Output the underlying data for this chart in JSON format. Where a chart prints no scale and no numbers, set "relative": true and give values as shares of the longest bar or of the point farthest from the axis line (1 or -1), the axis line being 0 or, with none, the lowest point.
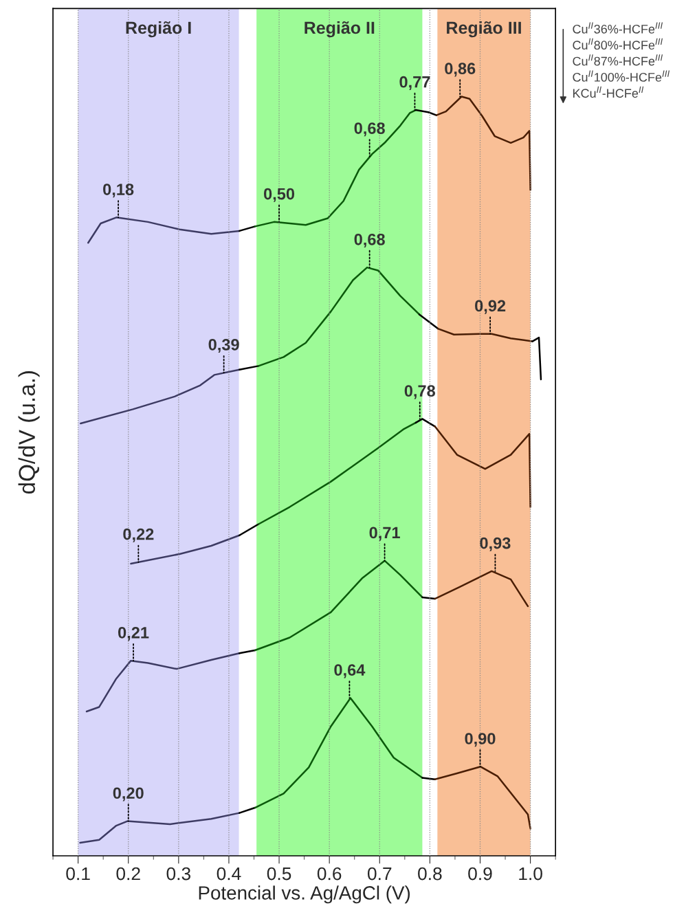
{
  "chart_data": {
    "type": "line",
    "relative": true,
    "xlabel": "Potencial vs. Ag/AgCl (V)",
    "ylabel": "dQ/dV (u.a.)",
    "xlim": [
      0.05,
      1.05
    ],
    "xticks": [
      0.1,
      0.2,
      0.3,
      0.4,
      0.5,
      0.6,
      0.7,
      0.8,
      0.9,
      {
        "value": 1.0,
        "label": "1.0"
      }
    ],
    "grid": "x",
    "line_style": "solid",
    "marker": "none",
    "bands": [
      {
        "axis": "x",
        "from": 0.1,
        "to": 0.42,
        "label": "Região I",
        "color": "#d8d6fa"
      },
      {
        "axis": "x",
        "from": 0.455,
        "to": 0.785,
        "label": "Região II",
        "color": "#9dfb97"
      },
      {
        "axis": "x",
        "from": 0.815,
        "to": 1.0,
        "label": "Região III",
        "color": "#f9bf96"
      }
    ],
    "series": [
      {
        "color": "#3d3b63",
        "x": [
          0.12,
          0.145,
          0.176,
          0.239,
          0.302,
          0.365,
          0.421
        ],
        "values": [
          0.804,
          0.83,
          0.838,
          0.832,
          0.822,
          0.816,
          0.82
        ]
      },
      {
        "color": "#000000",
        "x": [
          0.421,
          0.452
        ],
        "values": [
          0.82,
          0.826
        ]
      },
      {
        "color": "#0b5a0b",
        "x": [
          0.452,
          0.49,
          0.553,
          0.597,
          0.628,
          0.659,
          0.685,
          0.71,
          0.741,
          0.76,
          0.772
        ],
        "values": [
          0.826,
          0.832,
          0.828,
          0.837,
          0.86,
          0.902,
          0.923,
          0.938,
          0.961,
          0.978,
          0.982
        ]
      },
      {
        "color": "#000000",
        "x": [
          0.772,
          0.797,
          0.813
        ],
        "values": [
          0.982,
          0.979,
          0.975
        ]
      },
      {
        "color": "#4a1e05",
        "x": [
          0.813,
          0.832,
          0.863,
          0.879,
          0.904,
          0.929,
          0.961,
          0.986,
          0.998,
          1.0
        ],
        "values": [
          0.975,
          0.98,
          1.0,
          0.997,
          0.974,
          0.947,
          0.938,
          0.945,
          0.954,
          0.875
        ]
      },
      {
        "color": "#3d3b63",
        "x": [
          0.105,
          0.209,
          0.292,
          0.343,
          0.371,
          0.421
        ],
        "values": [
          0.562,
          0.581,
          0.598,
          0.613,
          0.627,
          0.634
        ]
      },
      {
        "color": "#000000",
        "x": [
          0.421,
          0.459
        ],
        "values": [
          0.634,
          0.639
        ]
      },
      {
        "color": "#0b5a0b",
        "x": [
          0.459,
          0.509,
          0.553,
          0.603,
          0.647,
          0.675,
          0.697,
          0.741,
          0.779
        ],
        "values": [
          0.639,
          0.651,
          0.67,
          0.712,
          0.754,
          0.771,
          0.767,
          0.733,
          0.708
        ]
      },
      {
        "color": "#000000",
        "x": [
          0.779,
          0.816
        ],
        "values": [
          0.708,
          0.689
        ]
      },
      {
        "color": "#4a1e05",
        "x": [
          0.816,
          0.848,
          0.898,
          0.923,
          0.961,
          1.004
        ],
        "values": [
          0.689,
          0.681,
          0.682,
          0.682,
          0.676,
          0.672
        ]
      },
      {
        "color": "#000000",
        "x": [
          1.004,
          1.017,
          1.021
        ],
        "values": [
          0.672,
          0.677,
          0.621
        ]
      },
      {
        "color": "#3d3b63",
        "x": [
          0.205,
          0.302,
          0.365,
          0.421
        ],
        "values": [
          0.374,
          0.387,
          0.398,
          0.412
        ]
      },
      {
        "color": "#000000",
        "x": [
          0.421,
          0.459
        ],
        "values": [
          0.412,
          0.427
        ]
      },
      {
        "color": "#0b5a0b",
        "x": [
          0.459,
          0.521,
          0.603,
          0.697,
          0.747,
          0.772
        ],
        "values": [
          0.427,
          0.45,
          0.484,
          0.529,
          0.554,
          0.563
        ]
      },
      {
        "color": "#000000",
        "x": [
          0.772,
          0.785,
          0.81
        ],
        "values": [
          0.563,
          0.568,
          0.558
        ]
      },
      {
        "color": "#4a1e05",
        "x": [
          0.81,
          0.854,
          0.91,
          0.961,
          0.998,
          1.0
        ],
        "values": [
          0.558,
          0.52,
          0.501,
          0.52,
          0.548,
          0.45
        ]
      },
      {
        "color": "#3d3b63",
        "x": [
          0.117,
          0.142,
          0.176,
          0.205,
          0.239,
          0.296,
          0.365,
          0.421
        ],
        "values": [
          0.176,
          0.182,
          0.22,
          0.244,
          0.241,
          0.233,
          0.245,
          0.254
        ]
      },
      {
        "color": "#000000",
        "x": [
          0.421,
          0.452
        ],
        "values": [
          0.254,
          0.258
        ]
      },
      {
        "color": "#0b5a0b",
        "x": [
          0.452,
          0.521,
          0.603,
          0.666,
          0.71,
          0.741,
          0.785
        ],
        "values": [
          0.258,
          0.275,
          0.309,
          0.355,
          0.378,
          0.359,
          0.329
        ]
      },
      {
        "color": "#000000",
        "x": [
          0.785,
          0.81
        ],
        "values": [
          0.329,
          0.327
        ]
      },
      {
        "color": "#4a1e05",
        "x": [
          0.81,
          0.86,
          0.923,
          0.961,
          0.995
        ],
        "values": [
          0.327,
          0.343,
          0.364,
          0.353,
          0.317
        ]
      },
      {
        "color": "#3d3b63",
        "x": [
          0.104,
          0.142,
          0.176,
          0.198,
          0.283,
          0.365,
          0.421
        ],
        "values": [
          0.0,
          0.004,
          0.023,
          0.029,
          0.025,
          0.032,
          0.04
        ]
      },
      {
        "color": "#000000",
        "x": [
          0.421,
          0.452
        ],
        "values": [
          0.04,
          0.047
        ]
      },
      {
        "color": "#0b5a0b",
        "x": [
          0.452,
          0.509,
          0.559,
          0.603,
          0.642,
          0.685,
          0.728,
          0.785
        ],
        "values": [
          0.047,
          0.066,
          0.101,
          0.156,
          0.194,
          0.156,
          0.114,
          0.087
        ]
      },
      {
        "color": "#000000",
        "x": [
          0.785,
          0.81
        ],
        "values": [
          0.087,
          0.085
        ]
      },
      {
        "color": "#4a1e05",
        "x": [
          0.81,
          0.854,
          0.901,
          0.935,
          0.995,
          1.0
        ],
        "values": [
          0.085,
          0.093,
          0.102,
          0.089,
          0.038,
          0.019
        ]
      }
    ],
    "annotations": [
      {
        "text": "0,18",
        "x": 0.18,
        "y": 0.838
      },
      {
        "text": "0,50",
        "x": 0.5,
        "y": 0.832
      },
      {
        "text": "0,68",
        "x": 0.68,
        "y": 0.92
      },
      {
        "text": "0,77",
        "x": 0.77,
        "y": 0.982
      },
      {
        "text": "0,86",
        "x": 0.86,
        "y": 1.0
      },
      {
        "text": "0,39",
        "x": 0.39,
        "y": 0.63
      },
      {
        "text": "0,68",
        "x": 0.68,
        "y": 0.771
      },
      {
        "text": "0,92",
        "x": 0.92,
        "y": 0.682
      },
      {
        "text": "0,22",
        "x": 0.22,
        "y": 0.376
      },
      {
        "text": "0,78",
        "x": 0.78,
        "y": 0.568
      },
      {
        "text": "0,21",
        "x": 0.21,
        "y": 0.244
      },
      {
        "text": "0,71",
        "x": 0.71,
        "y": 0.378
      },
      {
        "text": "0,93",
        "x": 0.93,
        "y": 0.364
      },
      {
        "text": "0,20",
        "x": 0.2,
        "y": 0.029
      },
      {
        "text": "0,64",
        "x": 0.64,
        "y": 0.194
      },
      {
        "text": "0,90",
        "x": 0.9,
        "y": 0.102
      },
      "Cu$^{II}$36%-HCFe$^{III}$",
      "Cu$^{II}$80%-HCFe$^{III}$",
      "Cu$^{II}$87%-HCFe$^{III}$",
      "Cu$^{II}$100%-HCFe$^{III}$",
      "KCu$^{II}$-HCFe$^{II}$"
    ]
  }
}
